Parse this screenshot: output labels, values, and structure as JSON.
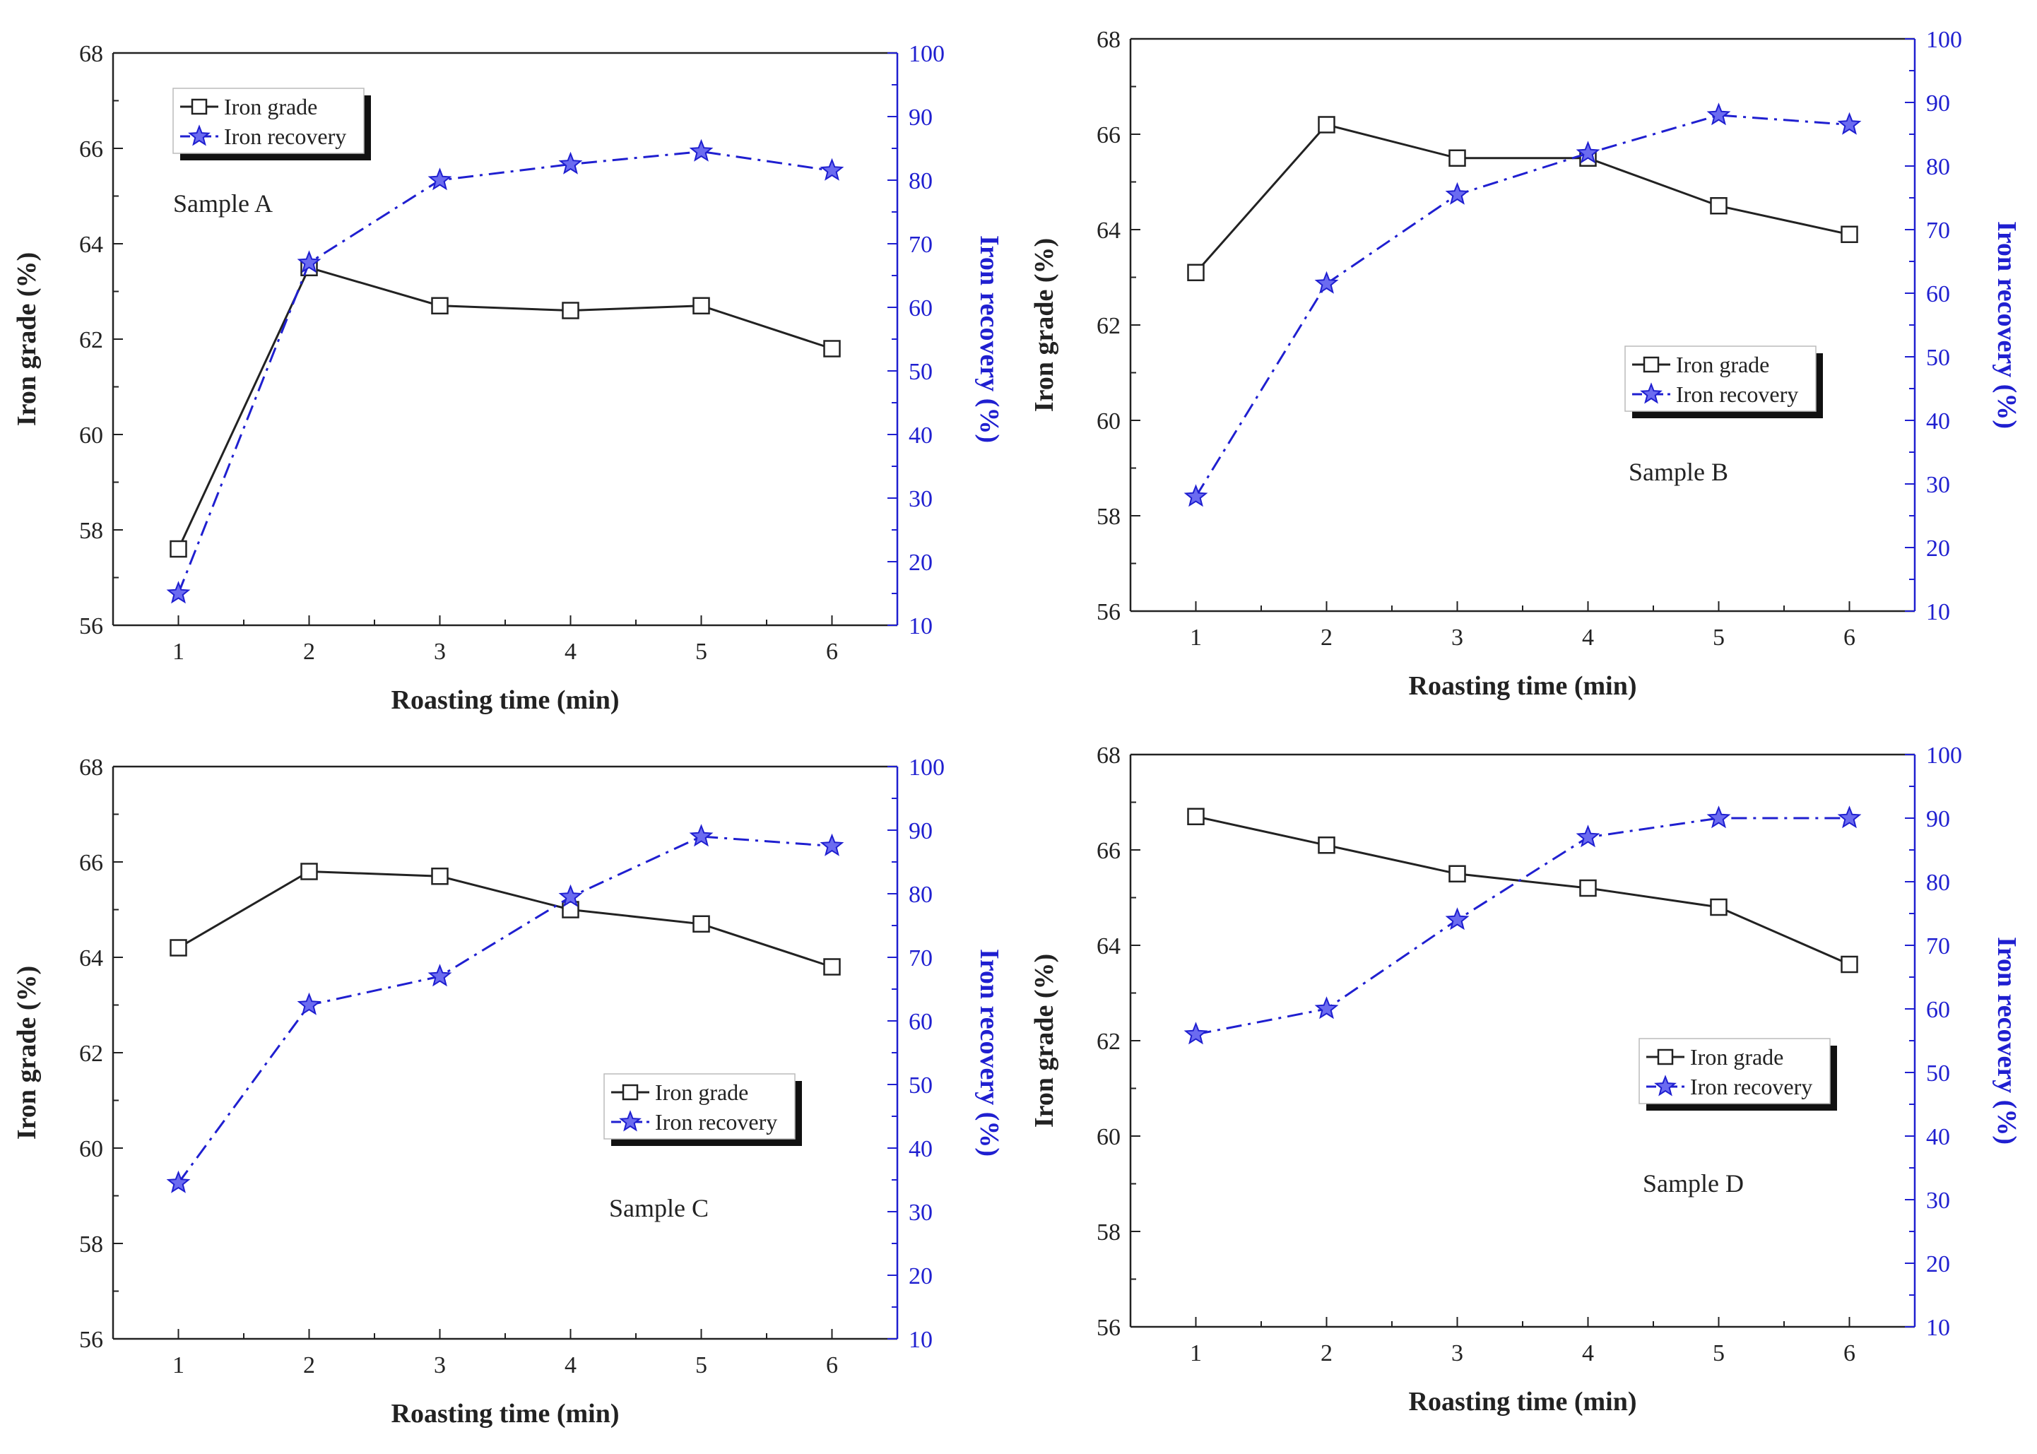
{
  "colors": {
    "grade": "#222222",
    "recovery": "#1f1fd0",
    "axis": "#222222"
  },
  "chart_data": [
    {
      "type": "line",
      "annotation": "Sample A",
      "xlabel": "Roasting time (min)",
      "ylabel": "Iron grade (%)",
      "y2label": "Iron recovery (%)",
      "x": [
        1,
        2,
        3,
        4,
        5,
        6
      ],
      "xlim": [
        0.5,
        6.5
      ],
      "ylim": [
        56,
        68
      ],
      "y2lim": [
        10,
        100
      ],
      "yticks": [
        56,
        58,
        60,
        62,
        64,
        66,
        68
      ],
      "y2ticks": [
        10,
        20,
        30,
        40,
        50,
        60,
        70,
        80,
        90,
        100
      ],
      "legend_position": "top-left",
      "series": [
        {
          "name": "Iron grade",
          "axis": "left",
          "marker": "square",
          "values": [
            57.6,
            63.5,
            62.7,
            62.6,
            62.7,
            61.8
          ]
        },
        {
          "name": "Iron recovery",
          "axis": "right",
          "marker": "star",
          "values": [
            15,
            67,
            80,
            82.5,
            84.5,
            81.5
          ]
        }
      ]
    },
    {
      "type": "line",
      "annotation": "Sample B",
      "xlabel": "Roasting time (min)",
      "ylabel": "Iron grade (%)",
      "y2label": "Iron recovery (%)",
      "x": [
        1,
        2,
        3,
        4,
        5,
        6
      ],
      "xlim": [
        0.5,
        6.5
      ],
      "ylim": [
        56,
        68
      ],
      "y2lim": [
        10,
        100
      ],
      "yticks": [
        56,
        58,
        60,
        62,
        64,
        66,
        68
      ],
      "y2ticks": [
        10,
        20,
        30,
        40,
        50,
        60,
        70,
        80,
        90,
        100
      ],
      "legend_position": "center-right",
      "series": [
        {
          "name": "Iron grade",
          "axis": "left",
          "marker": "square",
          "values": [
            63.1,
            66.2,
            65.5,
            65.5,
            64.5,
            63.9
          ]
        },
        {
          "name": "Iron recovery",
          "axis": "right",
          "marker": "star",
          "values": [
            28,
            61.5,
            75.5,
            82,
            88,
            86.5
          ]
        }
      ]
    },
    {
      "type": "line",
      "annotation": "Sample C",
      "xlabel": "Roasting time (min)",
      "ylabel": "Iron grade (%)",
      "y2label": "Iron recovery (%)",
      "x": [
        1,
        2,
        3,
        4,
        5,
        6
      ],
      "xlim": [
        0.5,
        6.5
      ],
      "ylim": [
        56,
        68
      ],
      "y2lim": [
        10,
        100
      ],
      "yticks": [
        56,
        58,
        60,
        62,
        64,
        66,
        68
      ],
      "y2ticks": [
        10,
        20,
        30,
        40,
        50,
        60,
        70,
        80,
        90,
        100
      ],
      "legend_position": "center-right",
      "series": [
        {
          "name": "Iron grade",
          "axis": "left",
          "marker": "square",
          "values": [
            64.2,
            65.8,
            65.7,
            65.0,
            64.7,
            63.8
          ]
        },
        {
          "name": "Iron recovery",
          "axis": "right",
          "marker": "star",
          "values": [
            34.5,
            62.5,
            67,
            79.5,
            89,
            87.5
          ]
        }
      ]
    },
    {
      "type": "line",
      "annotation": "Sample D",
      "xlabel": "Roasting time (min)",
      "ylabel": "Iron grade (%)",
      "y2label": "Iron recovery (%)",
      "x": [
        1,
        2,
        3,
        4,
        5,
        6
      ],
      "xlim": [
        0.5,
        6.5
      ],
      "ylim": [
        56,
        68
      ],
      "y2lim": [
        10,
        100
      ],
      "yticks": [
        56,
        58,
        60,
        62,
        64,
        66,
        68
      ],
      "y2ticks": [
        10,
        20,
        30,
        40,
        50,
        60,
        70,
        80,
        90,
        100
      ],
      "legend_position": "center-right",
      "series": [
        {
          "name": "Iron grade",
          "axis": "left",
          "marker": "square",
          "values": [
            66.7,
            66.1,
            65.5,
            65.2,
            64.8,
            63.6
          ]
        },
        {
          "name": "Iron recovery",
          "axis": "right",
          "marker": "star",
          "values": [
            56,
            60,
            74,
            87,
            90,
            90
          ]
        }
      ]
    }
  ]
}
